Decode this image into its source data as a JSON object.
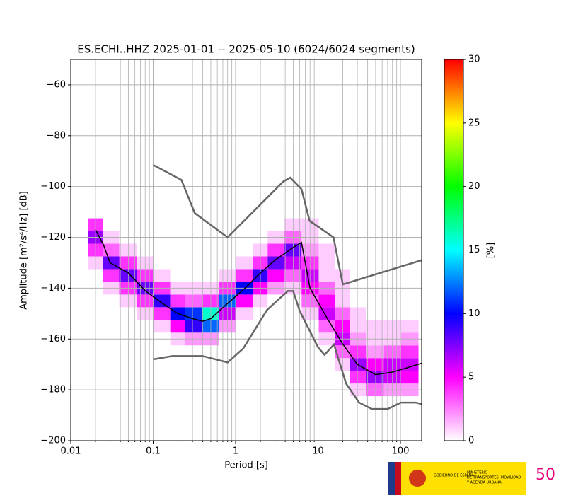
{
  "chart_data": {
    "type": "ppsd",
    "title": "ES.ECHI..HHZ   2025-01-01 -- 2025-05-10  (6024/6024 segments)",
    "xlabel": "Period [s]",
    "ylabel": "Amplitude [m²/s⁴/Hz] [dB]",
    "xscale": "log",
    "xlim": [
      0.01,
      181
    ],
    "ylim": [
      -200,
      -50
    ],
    "xticks": [
      0.01,
      0.1,
      1,
      10,
      100
    ],
    "xminorticks": [
      0.02,
      0.03,
      0.04,
      0.05,
      0.06,
      0.07,
      0.08,
      0.09,
      0.2,
      0.3,
      0.4,
      0.5,
      0.6,
      0.7,
      0.8,
      0.9,
      2,
      3,
      4,
      5,
      6,
      7,
      8,
      9,
      20,
      30,
      40,
      50,
      60,
      70,
      80,
      90
    ],
    "yticks": [
      {
        "value": -200,
        "label": "−200"
      },
      {
        "value": -180,
        "label": "−180"
      },
      {
        "value": -160,
        "label": "−160"
      },
      {
        "value": -140,
        "label": "−140"
      },
      {
        "value": -120,
        "label": "−120"
      },
      {
        "value": -100,
        "label": "−100"
      },
      {
        "value": -80,
        "label": "−80"
      },
      {
        "value": -60,
        "label": "−60"
      }
    ],
    "grid": true,
    "heatmap": {
      "periods": [
        0.02,
        0.03,
        0.05,
        0.08,
        0.13,
        0.2,
        0.3,
        0.5,
        0.8,
        1.3,
        2,
        3,
        5,
        8,
        13,
        20,
        30,
        50,
        80,
        130
      ],
      "db": [
        -180,
        -175,
        -170,
        -165,
        -160,
        -155,
        -150,
        -145,
        -140,
        -135,
        -130,
        -125,
        -120,
        -115
      ],
      "percent": [
        [
          0,
          0,
          0,
          0,
          0,
          0,
          0,
          0,
          0,
          0,
          1,
          4,
          7,
          4
        ],
        [
          0,
          0,
          0,
          0,
          0,
          0,
          0,
          0,
          1,
          4,
          8,
          3,
          1,
          0
        ],
        [
          0,
          0,
          0,
          0,
          0,
          0,
          0,
          1,
          4,
          8,
          4,
          1,
          0,
          0
        ],
        [
          0,
          0,
          0,
          0,
          0,
          0,
          1,
          4,
          8,
          4,
          1,
          0,
          0,
          0
        ],
        [
          0,
          0,
          0,
          0,
          0,
          1,
          4,
          9,
          4,
          1,
          0,
          0,
          0,
          0
        ],
        [
          0,
          0,
          0,
          0,
          1,
          5,
          10,
          4,
          1,
          0,
          0,
          0,
          0,
          0
        ],
        [
          0,
          0,
          0,
          0,
          2,
          9,
          11,
          3,
          1,
          0,
          0,
          0,
          0,
          0
        ],
        [
          0,
          0,
          0,
          0,
          2,
          12,
          16,
          4,
          1,
          0,
          0,
          0,
          0,
          0
        ],
        [
          0,
          0,
          0,
          0,
          0,
          2,
          6,
          12,
          4,
          1,
          0,
          0,
          0,
          0
        ],
        [
          0,
          0,
          0,
          0,
          0,
          0,
          1,
          5,
          10,
          4,
          1,
          0,
          0,
          0
        ],
        [
          0,
          0,
          0,
          0,
          0,
          0,
          0,
          1,
          5,
          9,
          4,
          1,
          0,
          0
        ],
        [
          0,
          0,
          0,
          0,
          0,
          0,
          0,
          0,
          2,
          5,
          8,
          4,
          1,
          0
        ],
        [
          0,
          0,
          0,
          0,
          0,
          0,
          0,
          0,
          1,
          3,
          6,
          8,
          3,
          1
        ],
        [
          0,
          0,
          0,
          0,
          0,
          0,
          1,
          3,
          5,
          6,
          4,
          2,
          1,
          1
        ],
        [
          0,
          0,
          0,
          0,
          1,
          3,
          6,
          5,
          3,
          1,
          1,
          1,
          0,
          0
        ],
        [
          0,
          0,
          1,
          3,
          6,
          5,
          3,
          1,
          1,
          1,
          0,
          0,
          0,
          0
        ],
        [
          1,
          4,
          7,
          4,
          2,
          1,
          1,
          0,
          0,
          0,
          0,
          0,
          0,
          0
        ],
        [
          3,
          7,
          5,
          2,
          1,
          1,
          0,
          0,
          0,
          0,
          0,
          0,
          0,
          0
        ],
        [
          2,
          6,
          6,
          3,
          1,
          1,
          0,
          0,
          0,
          0,
          0,
          0,
          0,
          0
        ],
        [
          2,
          5,
          6,
          4,
          2,
          1,
          0,
          0,
          0,
          0,
          0,
          0,
          0,
          0
        ]
      ]
    },
    "series": [
      {
        "name": "NHNM",
        "color": "#666666",
        "x": [
          0.1,
          0.22,
          0.32,
          0.8,
          3.8,
          4.6,
          6.3,
          7.9,
          15.4,
          20,
          181
        ],
        "values": [
          -91.5,
          -97.4,
          -110.5,
          -120,
          -98,
          -96.5,
          -101,
          -113.5,
          -120,
          -138.5,
          -129
        ]
      },
      {
        "name": "NLNM",
        "color": "#666666",
        "x": [
          0.1,
          0.17,
          0.4,
          0.8,
          1.24,
          2.4,
          4.3,
          5,
          6,
          10,
          12,
          15.6,
          21.9,
          31.6,
          45,
          70,
          101,
          154,
          181
        ],
        "values": [
          -168,
          -166.7,
          -166.7,
          -169.2,
          -163.7,
          -148.6,
          -141.1,
          -141.1,
          -149,
          -163.2,
          -166.2,
          -162.1,
          -177.5,
          -185,
          -187.5,
          -187.5,
          -185,
          -185,
          -185.6
        ]
      },
      {
        "name": "mode",
        "color": "#000000",
        "x": [
          0.02,
          0.025,
          0.03,
          0.05,
          0.08,
          0.13,
          0.2,
          0.3,
          0.4,
          0.5,
          0.8,
          1.3,
          2,
          3,
          5,
          6.3,
          8,
          13,
          20,
          30,
          50,
          80,
          130,
          181
        ],
        "values": [
          -117,
          -123,
          -130,
          -134,
          -141,
          -146,
          -150,
          -152,
          -153,
          -152,
          -146,
          -140,
          -134,
          -129,
          -124,
          -122,
          -140,
          -152,
          -162,
          -170,
          -174,
          -173,
          -171,
          -169.5
        ]
      }
    ],
    "colorbar": {
      "lim": [
        0,
        30
      ],
      "ticks": [
        0,
        5,
        10,
        15,
        20,
        25,
        30
      ],
      "label": "[%]",
      "colormap": [
        "#ffffff",
        "#ff00ff",
        "#0000ff",
        "#00ffff",
        "#00ff00",
        "#ffff00",
        "#ff0000"
      ]
    }
  },
  "footer": {
    "gov": "GOBIERNO DE ESPAÑA",
    "ministry": [
      "MINISTERIO",
      "DE TRANSPORTES, MOVILIDAD",
      "Y AGENDA URBANA"
    ]
  }
}
